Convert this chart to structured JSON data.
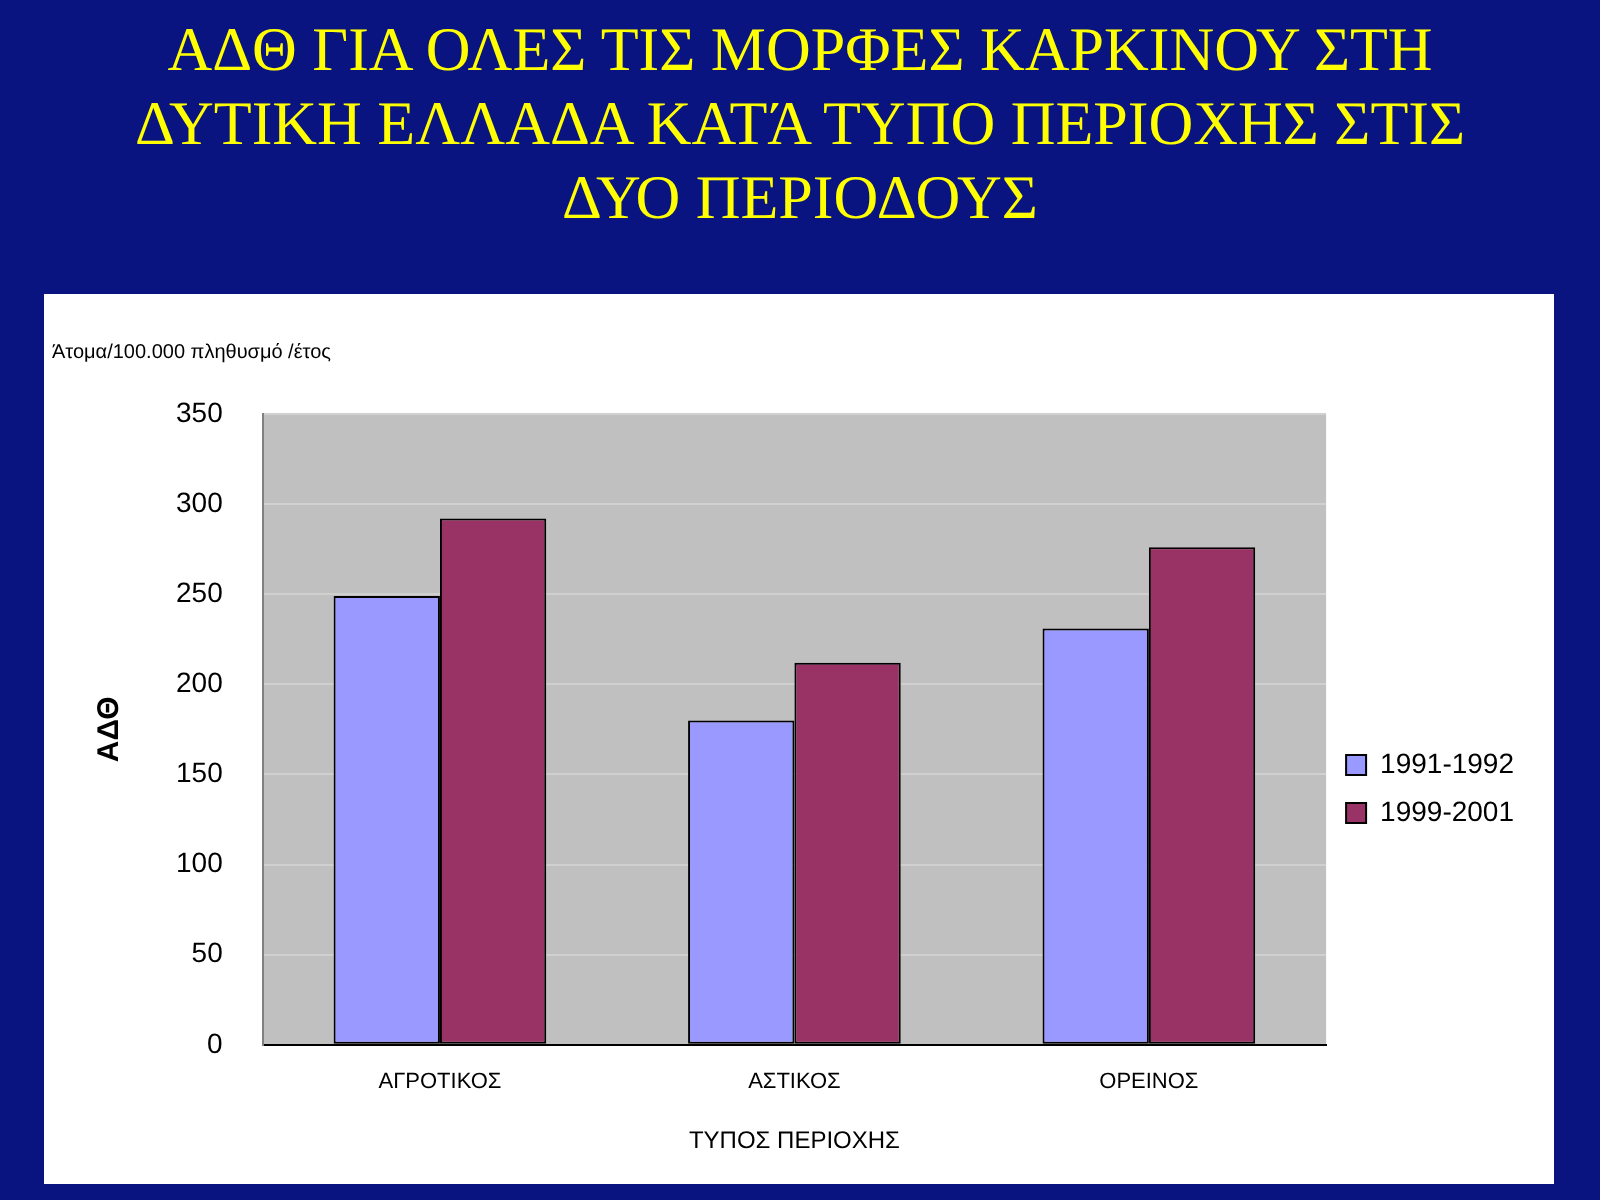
{
  "chart_data": {
    "type": "bar",
    "title": "ΑΔΘ ΓΙΑ ΟΛΕΣ ΤΙΣ ΜΟΡΦΕΣ ΚΑΡΚΙΝΟΥ ΣΤΗ ΔΥΤΙΚΗ ΕΛΛΑΔΑ ΚΑΤΆ ΤΥΠΟ ΠΕΡΙΟΧΗΣ ΣΤΙΣ ΔΥΟ ΠΕΡΙΟΔΟΥΣ",
    "xlabel": "ΤΥΠΟΣ ΠΕΡΙΟΧΗΣ",
    "ylabel": "ΑΔΘ",
    "annotations": [
      "Άτομα/100.000 πληθυσμό /έτος"
    ],
    "categories": [
      "ΑΓΡΟΤΙΚΟΣ",
      "ΑΣΤΙΚΟΣ",
      "ΟΡΕΙΝΟΣ"
    ],
    "series": [
      {
        "name": "1991-1992",
        "color": "#9999ff",
        "values": [
          249,
          180,
          231
        ]
      },
      {
        "name": "1999-2001",
        "color": "#993366",
        "values": [
          292,
          212,
          276
        ]
      }
    ],
    "ylim": [
      0,
      350
    ],
    "yticks": [
      0,
      50,
      100,
      150,
      200,
      250,
      300,
      350
    ],
    "grid": "y",
    "legend": "right"
  }
}
